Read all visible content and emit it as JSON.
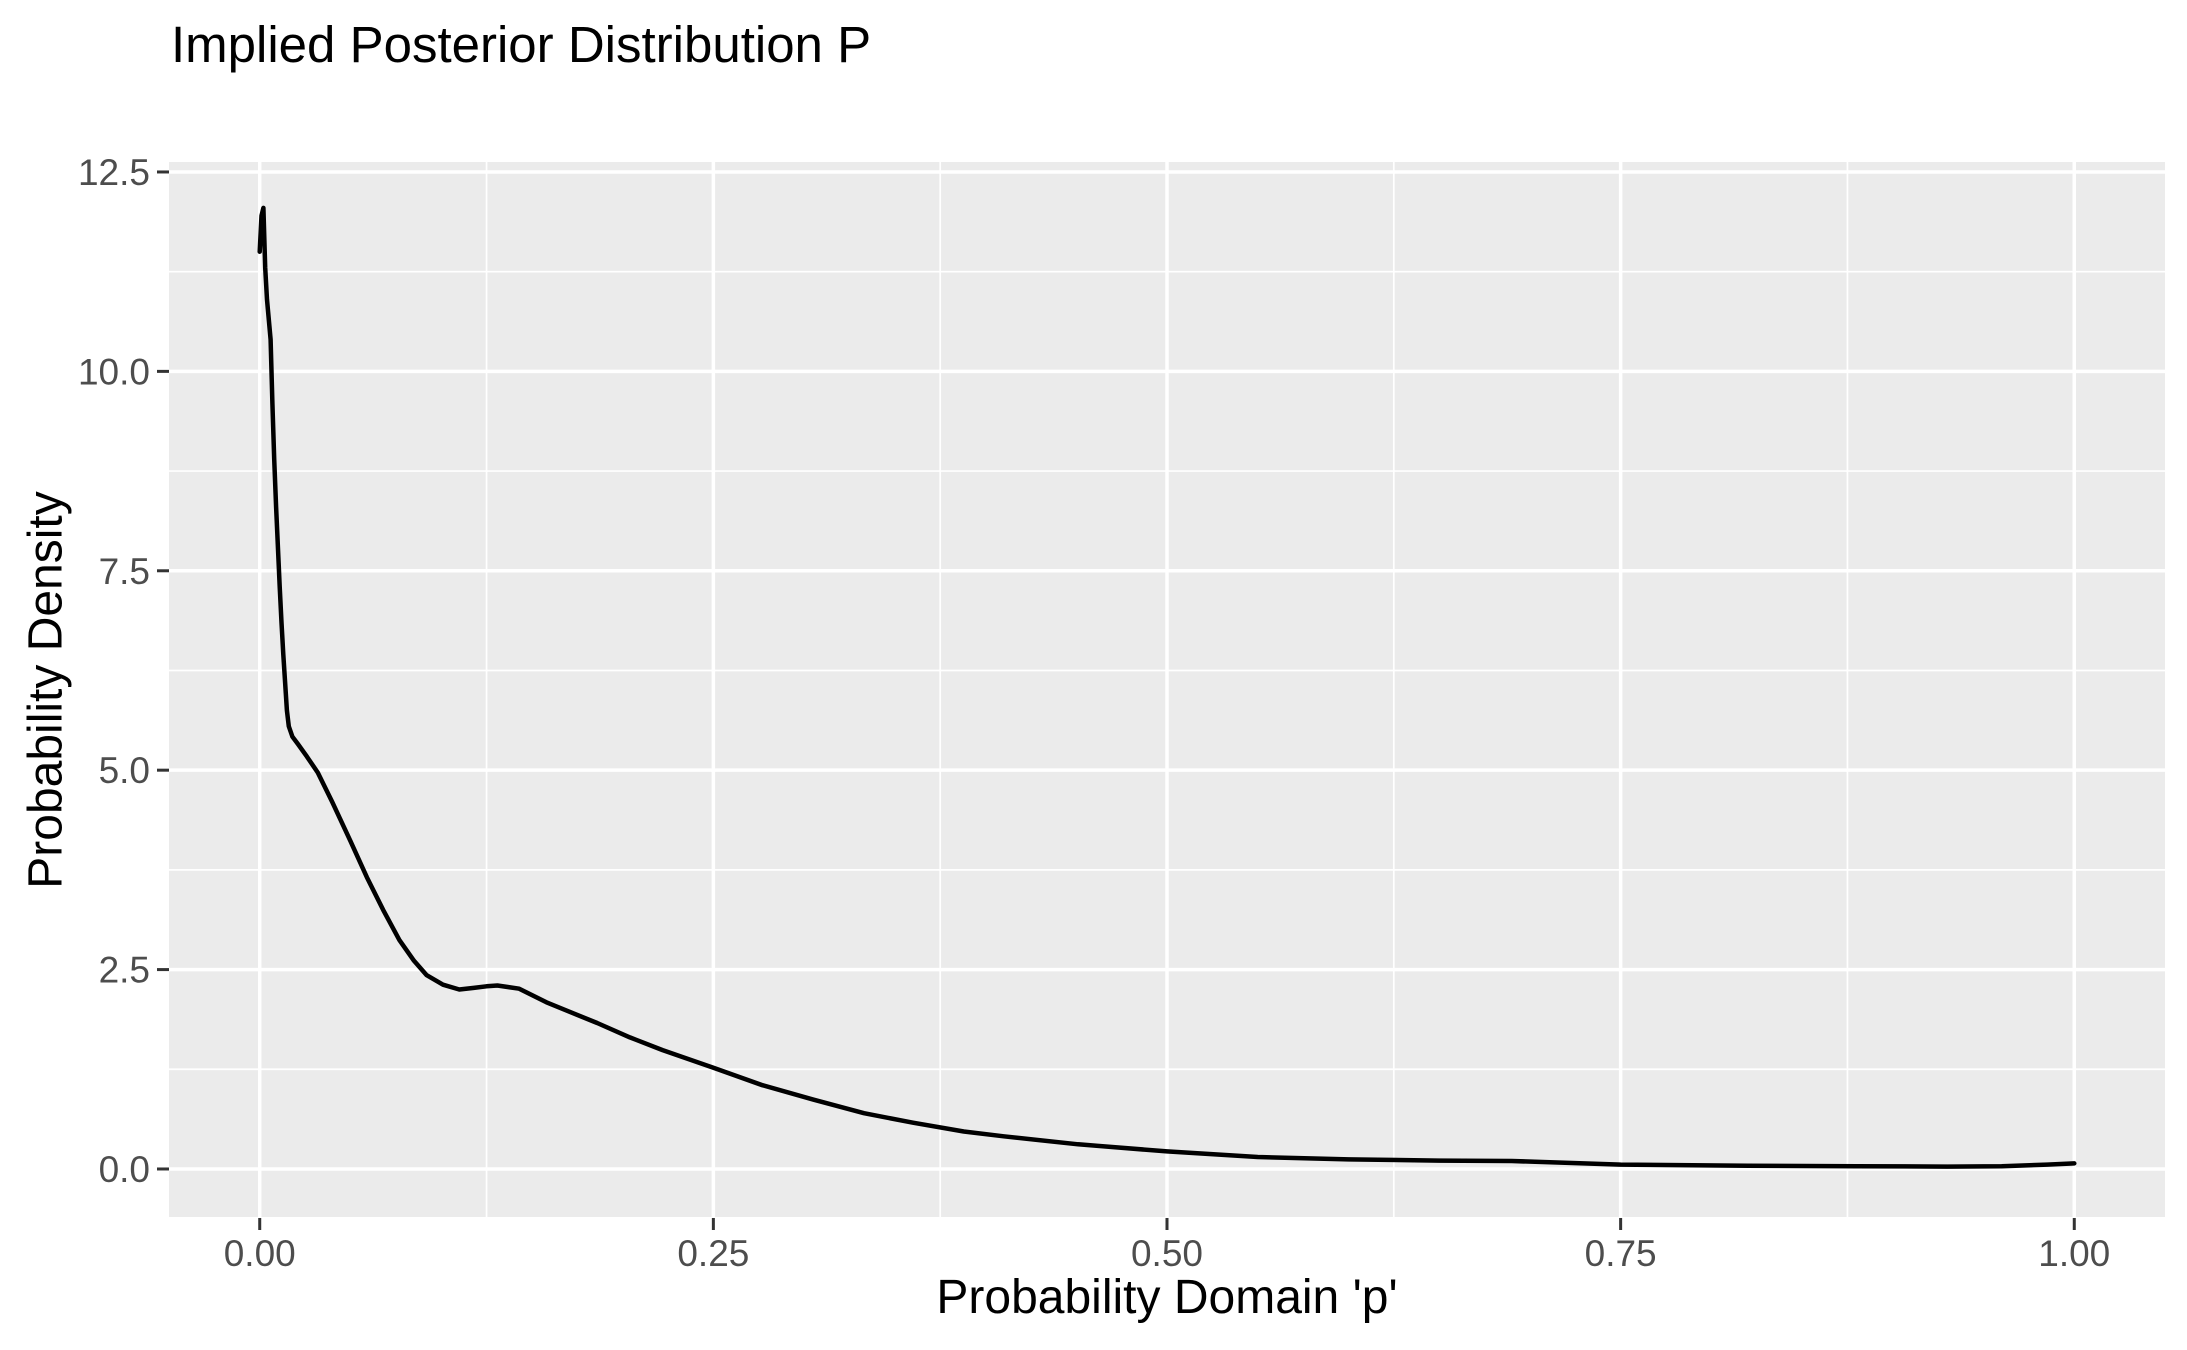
{
  "title": "Implied Posterior Distribution P",
  "x_axis": {
    "title": "Probability Domain 'p'",
    "tick_labels": [
      "0.00",
      "0.25",
      "0.50",
      "0.75",
      "1.00"
    ],
    "tick_values": [
      0,
      0.25,
      0.5,
      0.75,
      1.0
    ],
    "minor_values": [
      0.125,
      0.375,
      0.625,
      0.875
    ],
    "range": [
      -0.05,
      1.05
    ]
  },
  "y_axis": {
    "title": "Probability Density",
    "tick_labels": [
      "0.0",
      "2.5",
      "5.0",
      "7.5",
      "10.0",
      "12.5"
    ],
    "tick_values": [
      0,
      2.5,
      5.0,
      7.5,
      10.0,
      12.5
    ],
    "minor_values": [
      1.25,
      3.75,
      6.25,
      8.75,
      11.25
    ],
    "range": [
      -0.602,
      12.625
    ]
  },
  "colors": {
    "panel_background": "#EBEBEB",
    "gridline": "#FFFFFF",
    "curve": "#000000",
    "tick_mark": "#333333",
    "tick_label": "#4D4D4D",
    "title_text": "#000000"
  },
  "chart_data": {
    "type": "line",
    "subtype": "density",
    "title": "Implied Posterior Distribution P",
    "xlabel": "Probability Domain 'p'",
    "ylabel": "Probability Density",
    "xlim": [
      -0.05,
      1.05
    ],
    "ylim": [
      -0.602,
      12.625
    ],
    "grid": "on",
    "legend": "none",
    "x": [
      0.0,
      0.001,
      0.002,
      0.003,
      0.004,
      0.005,
      0.006,
      0.007,
      0.008,
      0.009,
      0.01,
      0.011,
      0.012,
      0.013,
      0.014,
      0.015,
      0.016,
      0.018,
      0.021,
      0.026,
      0.032,
      0.04,
      0.05,
      0.059,
      0.068,
      0.077,
      0.085,
      0.092,
      0.101,
      0.11,
      0.118,
      0.125,
      0.131,
      0.143,
      0.158,
      0.172,
      0.186,
      0.204,
      0.222,
      0.25,
      0.277,
      0.305,
      0.333,
      0.36,
      0.388,
      0.41,
      0.451,
      0.5,
      0.55,
      0.6,
      0.65,
      0.69,
      0.75,
      0.82,
      0.88,
      0.93,
      0.96,
      0.985,
      1.0
    ],
    "y": [
      11.5,
      11.95,
      12.05,
      11.3,
      10.9,
      10.65,
      10.4,
      9.6,
      8.9,
      8.3,
      7.8,
      7.3,
      6.85,
      6.45,
      6.1,
      5.75,
      5.55,
      5.42,
      5.33,
      5.17,
      4.97,
      4.6,
      4.11,
      3.66,
      3.25,
      2.87,
      2.61,
      2.43,
      2.31,
      2.25,
      2.27,
      2.29,
      2.3,
      2.26,
      2.09,
      1.96,
      1.83,
      1.65,
      1.49,
      1.27,
      1.05,
      0.87,
      0.7,
      0.58,
      0.47,
      0.41,
      0.31,
      0.22,
      0.15,
      0.12,
      0.105,
      0.1,
      0.055,
      0.04,
      0.035,
      0.03,
      0.035,
      0.055,
      0.07
    ]
  }
}
